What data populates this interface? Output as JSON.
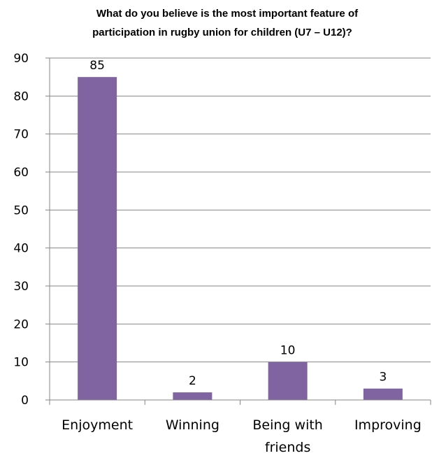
{
  "chart_data": {
    "type": "bar",
    "title_lines": [
      "What do you believe is the most important feature of",
      "participation in rugby union for children (U7 – U12)?"
    ],
    "categories": [
      [
        "Enjoyment"
      ],
      [
        "Winning"
      ],
      [
        "Being with",
        "friends"
      ],
      [
        "Improving"
      ]
    ],
    "values": [
      85,
      2,
      10,
      3
    ],
    "data_labels": [
      "85",
      "2",
      "10",
      "3"
    ],
    "ylim": [
      0,
      90
    ],
    "yticks": [
      0,
      10,
      20,
      30,
      40,
      50,
      60,
      70,
      80,
      90
    ],
    "grid": true,
    "legend": "none",
    "colors": {
      "bar": "#8064A2",
      "grid": "#868686",
      "axis": "#868686"
    }
  }
}
